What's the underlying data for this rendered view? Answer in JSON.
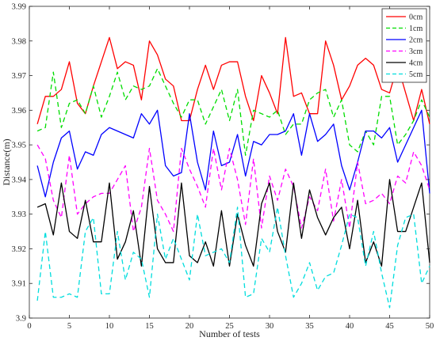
{
  "chart_data": {
    "type": "line",
    "title": "",
    "xlabel": "Number of tests",
    "ylabel": "Distance(m)",
    "xlim": [
      0,
      50
    ],
    "ylim": [
      3.9,
      3.99
    ],
    "xticks": [
      0,
      5,
      10,
      15,
      20,
      25,
      30,
      35,
      40,
      45,
      50
    ],
    "yticks": [
      3.9,
      3.91,
      3.92,
      3.93,
      3.94,
      3.95,
      3.96,
      3.97,
      3.98,
      3.99
    ],
    "xtick_labels": [
      "0",
      "5",
      "10",
      "15",
      "20",
      "25",
      "30",
      "35",
      "40",
      "45",
      "50"
    ],
    "ytick_labels": [
      "3.9",
      "3.91",
      "3.92",
      "3.93",
      "3.94",
      "3.95",
      "3.96",
      "3.97",
      "3.98",
      "3.99"
    ],
    "grid": false,
    "legend_position": "top-right",
    "x": [
      1,
      2,
      3,
      4,
      5,
      6,
      7,
      8,
      9,
      10,
      11,
      12,
      13,
      14,
      15,
      16,
      17,
      18,
      19,
      20,
      21,
      22,
      23,
      24,
      25,
      26,
      27,
      28,
      29,
      30,
      31,
      32,
      33,
      34,
      35,
      36,
      37,
      38,
      39,
      40,
      41,
      42,
      43,
      44,
      45,
      46,
      47,
      48,
      49,
      50
    ],
    "series": [
      {
        "name": "0cm",
        "color": "#ff0000",
        "dash": "solid",
        "values": [
          3.956,
          3.964,
          3.964,
          3.966,
          3.974,
          3.962,
          3.959,
          3.967,
          3.974,
          3.981,
          3.972,
          3.974,
          3.973,
          3.963,
          3.98,
          3.976,
          3.969,
          3.967,
          3.957,
          3.957,
          3.966,
          3.973,
          3.966,
          3.973,
          3.974,
          3.974,
          3.964,
          3.957,
          3.97,
          3.965,
          3.959,
          3.981,
          3.964,
          3.965,
          3.959,
          3.959,
          3.98,
          3.973,
          3.963,
          3.967,
          3.973,
          3.975,
          3.973,
          3.966,
          3.965,
          3.973,
          3.965,
          3.957,
          3.966,
          3.956
        ]
      },
      {
        "name": "1cm",
        "color": "#00dd00",
        "dash": "6,4",
        "values": [
          3.954,
          3.955,
          3.971,
          3.955,
          3.962,
          3.963,
          3.959,
          3.967,
          3.958,
          3.964,
          3.971,
          3.963,
          3.967,
          3.966,
          3.967,
          3.972,
          3.967,
          3.962,
          3.958,
          3.963,
          3.963,
          3.956,
          3.961,
          3.966,
          3.957,
          3.966,
          3.947,
          3.96,
          3.959,
          3.958,
          3.96,
          3.953,
          3.956,
          3.956,
          3.963,
          3.965,
          3.966,
          3.958,
          3.963,
          3.95,
          3.948,
          3.954,
          3.95,
          3.964,
          3.964,
          3.95,
          3.953,
          3.957,
          3.963,
          3.958
        ]
      },
      {
        "name": "2cm",
        "color": "#0000ff",
        "dash": "solid",
        "values": [
          3.944,
          3.935,
          3.945,
          3.952,
          3.954,
          3.943,
          3.948,
          3.947,
          3.953,
          3.955,
          3.954,
          3.953,
          3.952,
          3.959,
          3.956,
          3.96,
          3.944,
          3.941,
          3.942,
          3.959,
          3.945,
          3.937,
          3.954,
          3.944,
          3.945,
          3.953,
          3.941,
          3.951,
          3.95,
          3.953,
          3.953,
          3.954,
          3.959,
          3.947,
          3.959,
          3.951,
          3.953,
          3.956,
          3.944,
          3.937,
          3.945,
          3.954,
          3.954,
          3.952,
          3.955,
          3.945,
          3.95,
          3.955,
          3.96,
          3.936
        ]
      },
      {
        "name": "3cm",
        "color": "#ff00ff",
        "dash": "6,4",
        "values": [
          3.95,
          3.946,
          3.934,
          3.929,
          3.947,
          3.93,
          3.933,
          3.935,
          3.936,
          3.936,
          3.94,
          3.944,
          3.925,
          3.932,
          3.949,
          3.934,
          3.93,
          3.925,
          3.949,
          3.943,
          3.938,
          3.932,
          3.949,
          3.937,
          3.949,
          3.94,
          3.927,
          3.946,
          3.926,
          3.941,
          3.934,
          3.943,
          3.938,
          3.926,
          3.935,
          3.931,
          3.943,
          3.928,
          3.94,
          3.926,
          3.945,
          3.933,
          3.934,
          3.936,
          3.933,
          3.941,
          3.939,
          3.948,
          3.944,
          3.937
        ]
      },
      {
        "name": "4cm",
        "color": "#000000",
        "dash": "solid",
        "values": [
          3.932,
          3.933,
          3.924,
          3.939,
          3.925,
          3.923,
          3.934,
          3.922,
          3.922,
          3.939,
          3.917,
          3.922,
          3.931,
          3.915,
          3.938,
          3.92,
          3.916,
          3.916,
          3.939,
          3.918,
          3.916,
          3.922,
          3.915,
          3.931,
          3.915,
          3.93,
          3.921,
          3.915,
          3.933,
          3.939,
          3.925,
          3.919,
          3.939,
          3.923,
          3.937,
          3.929,
          3.924,
          3.929,
          3.932,
          3.92,
          3.934,
          3.916,
          3.922,
          3.915,
          3.94,
          3.925,
          3.925,
          3.932,
          3.939,
          3.916
        ]
      },
      {
        "name": "5cm",
        "color": "#00dddd",
        "dash": "6,4",
        "values": [
          3.905,
          3.925,
          3.906,
          3.906,
          3.907,
          3.906,
          3.925,
          3.929,
          3.907,
          3.907,
          3.925,
          3.911,
          3.919,
          3.917,
          3.906,
          3.93,
          3.917,
          3.923,
          3.917,
          3.911,
          3.93,
          3.918,
          3.919,
          3.92,
          3.916,
          3.932,
          3.906,
          3.907,
          3.923,
          3.919,
          3.932,
          3.918,
          3.906,
          3.91,
          3.916,
          3.908,
          3.912,
          3.913,
          3.921,
          3.93,
          3.929,
          3.915,
          3.925,
          3.913,
          3.903,
          3.921,
          3.929,
          3.93,
          3.91,
          3.915
        ]
      }
    ]
  }
}
